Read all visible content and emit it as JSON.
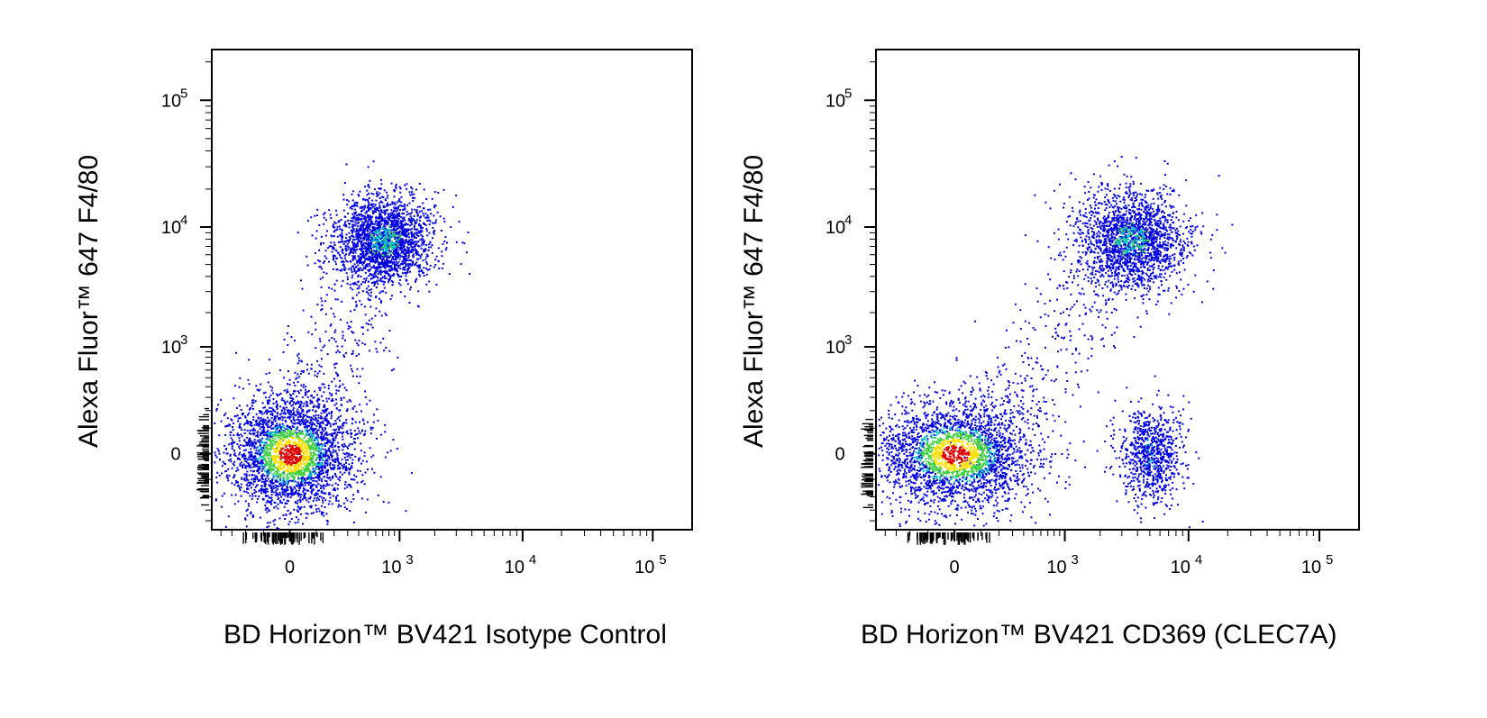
{
  "chart_data": [
    {
      "type": "scatter",
      "xlabel": "BD Horizon™ BV421 Isotype Control",
      "ylabel": "Alexa Fluor™ 647 F4/80",
      "x_ticks": [
        {
          "value": 0,
          "label": "0"
        },
        {
          "value": 1000,
          "label": "10",
          "sup": "3"
        },
        {
          "value": 10000,
          "label": "10",
          "sup": "4"
        },
        {
          "value": 100000,
          "label": "10",
          "sup": "5"
        }
      ],
      "y_ticks": [
        {
          "value": 0,
          "label": "0"
        },
        {
          "value": 1000,
          "label": "10",
          "sup": "3"
        },
        {
          "value": 10000,
          "label": "10",
          "sup": "4"
        },
        {
          "value": 100000,
          "label": "10",
          "sup": "5"
        }
      ],
      "populations": [
        {
          "name": "",
          "x_center": 0,
          "y_center": 0,
          "spread_x": 0.45,
          "spread_y": 0.42,
          "events": 2800,
          "density": "high"
        },
        {
          "name": "",
          "x_center": 700,
          "y_center": 8000,
          "spread_x": 0.35,
          "spread_y": 0.32,
          "events": 2100,
          "density": "medium"
        }
      ],
      "colors": {
        "low": "#0000e0",
        "mid": "#00c8c8",
        "high": "#ffe000",
        "peak": "#e00000"
      }
    },
    {
      "type": "scatter",
      "xlabel": "BD Horizon™ BV421 CD369 (CLEC7A)",
      "ylabel": "Alexa Fluor™ 647 F4/80",
      "x_ticks": [
        {
          "value": 0,
          "label": "0"
        },
        {
          "value": 1000,
          "label": "10",
          "sup": "3"
        },
        {
          "value": 10000,
          "label": "10",
          "sup": "4"
        },
        {
          "value": 100000,
          "label": "10",
          "sup": "5"
        }
      ],
      "y_ticks": [
        {
          "value": 0,
          "label": "0"
        },
        {
          "value": 1000,
          "label": "10",
          "sup": "3"
        },
        {
          "value": 10000,
          "label": "10",
          "sup": "4"
        },
        {
          "value": 100000,
          "label": "10",
          "sup": "5"
        }
      ],
      "populations": [
        {
          "name": "",
          "x_center": 0,
          "y_center": 0,
          "spread_x": 0.55,
          "spread_y": 0.38,
          "events": 2600,
          "density": "high"
        },
        {
          "name": "",
          "x_center": 3500,
          "y_center": 8000,
          "spread_x": 0.38,
          "spread_y": 0.35,
          "events": 1900,
          "density": "medium"
        },
        {
          "name": "",
          "x_center": 5000,
          "y_center": 0,
          "spread_x": 0.22,
          "spread_y": 0.35,
          "events": 800,
          "density": "low"
        }
      ],
      "colors": {
        "low": "#0000e0",
        "mid": "#00c8c8",
        "high": "#ffe000",
        "peak": "#e00000"
      }
    }
  ]
}
